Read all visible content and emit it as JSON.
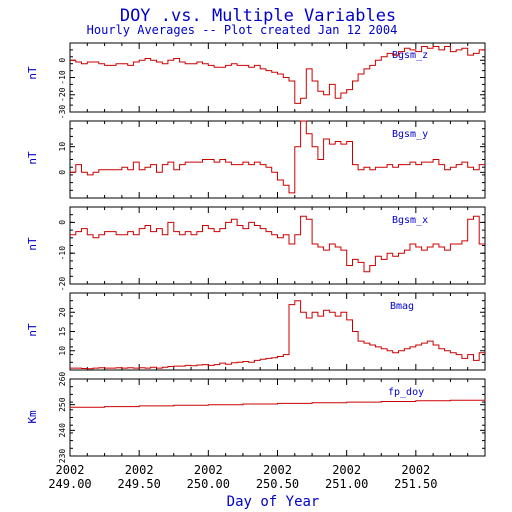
{
  "title": "DOY .vs. Multiple Variables",
  "subtitle": "Hourly Averages -- Plot created Jan 12 2004",
  "xlabel": "Day of Year",
  "x_tick_years": [
    "2002",
    "2002",
    "2002",
    "2002",
    "2002",
    "2002"
  ],
  "x_tick_days": [
    "249.00",
    "249.50",
    "250.00",
    "250.50",
    "251.00",
    "251.50"
  ],
  "colors": {
    "text": "#0000cc",
    "trace": "#cc0000",
    "axis": "#000000"
  },
  "chart_data": [
    {
      "type": "line",
      "name": "Bgsm_z",
      "ylabel": "nT",
      "ylim": [
        -30,
        10
      ],
      "yticks": [
        -30,
        -20,
        -10,
        0
      ],
      "xlim": [
        249.0,
        252.0
      ],
      "step": true,
      "x": [
        249.0,
        249.042,
        249.083,
        249.125,
        249.167,
        249.208,
        249.25,
        249.292,
        249.333,
        249.375,
        249.417,
        249.458,
        249.5,
        249.542,
        249.583,
        249.625,
        249.667,
        249.708,
        249.75,
        249.792,
        249.833,
        249.875,
        249.917,
        249.958,
        250.0,
        250.042,
        250.083,
        250.125,
        250.167,
        250.208,
        250.25,
        250.292,
        250.333,
        250.375,
        250.417,
        250.458,
        250.5,
        250.542,
        250.583,
        250.625,
        250.667,
        250.708,
        250.75,
        250.792,
        250.833,
        250.875,
        250.917,
        250.958,
        251.0,
        251.042,
        251.083,
        251.125,
        251.167,
        251.208,
        251.25,
        251.292,
        251.333,
        251.375,
        251.417,
        251.458,
        251.5,
        251.542,
        251.583,
        251.625,
        251.667,
        251.708,
        251.75,
        251.792,
        251.833,
        251.875,
        251.917,
        251.958
      ],
      "values": [
        0,
        -1,
        -2,
        -1,
        -1,
        -2,
        -3,
        -3,
        -2,
        -2,
        -3,
        -1,
        0,
        1,
        0,
        -1,
        -2,
        0,
        1,
        -1,
        -2,
        -2,
        -1,
        -2,
        -3,
        -4,
        -4,
        -3,
        -2,
        -3,
        -3,
        -4,
        -3,
        -5,
        -6,
        -7,
        -8,
        -10,
        -12,
        -25,
        -22,
        -5,
        -12,
        -18,
        -20,
        -14,
        -22,
        -19,
        -17,
        -12,
        -8,
        -5,
        -3,
        0,
        2,
        4,
        3,
        5,
        7,
        6,
        5,
        8,
        7,
        8,
        6,
        8,
        5,
        6,
        7,
        3,
        4,
        6
      ]
    },
    {
      "type": "line",
      "name": "Bgsm_y",
      "ylabel": "nT",
      "ylim": [
        -10,
        20
      ],
      "yticks": [
        0,
        10
      ],
      "xlim": [
        249.0,
        252.0
      ],
      "step": true,
      "x": [
        249.0,
        249.042,
        249.083,
        249.125,
        249.167,
        249.208,
        249.25,
        249.292,
        249.333,
        249.375,
        249.417,
        249.458,
        249.5,
        249.542,
        249.583,
        249.625,
        249.667,
        249.708,
        249.75,
        249.792,
        249.833,
        249.875,
        249.917,
        249.958,
        250.0,
        250.042,
        250.083,
        250.125,
        250.167,
        250.208,
        250.25,
        250.292,
        250.333,
        250.375,
        250.417,
        250.458,
        250.5,
        250.542,
        250.583,
        250.625,
        250.667,
        250.708,
        250.75,
        250.792,
        250.833,
        250.875,
        250.917,
        250.958,
        251.0,
        251.042,
        251.083,
        251.125,
        251.167,
        251.208,
        251.25,
        251.292,
        251.333,
        251.375,
        251.417,
        251.458,
        251.5,
        251.542,
        251.583,
        251.625,
        251.667,
        251.708,
        251.75,
        251.792,
        251.833,
        251.875,
        251.917,
        251.958
      ],
      "values": [
        0,
        3,
        0,
        -1,
        0,
        1,
        1,
        1,
        1,
        2,
        1,
        4,
        1,
        2,
        3,
        0,
        3,
        4,
        1,
        3,
        4,
        4,
        4,
        5,
        5,
        4,
        5,
        4,
        3,
        3,
        4,
        3,
        4,
        3,
        2,
        0,
        -3,
        -5,
        -8,
        10,
        20,
        15,
        10,
        5,
        13,
        11,
        12,
        11,
        12,
        3,
        1,
        2,
        1,
        2,
        2,
        3,
        2,
        3,
        3,
        4,
        3,
        4,
        4,
        5,
        3,
        1,
        2,
        3,
        4,
        2,
        1,
        3
      ]
    },
    {
      "type": "line",
      "name": "Bgsm_x",
      "ylabel": "nT",
      "ylim": [
        -20,
        5
      ],
      "yticks": [
        -20,
        -10,
        0
      ],
      "xlim": [
        249.0,
        252.0
      ],
      "step": true,
      "x": [
        249.0,
        249.042,
        249.083,
        249.125,
        249.167,
        249.208,
        249.25,
        249.292,
        249.333,
        249.375,
        249.417,
        249.458,
        249.5,
        249.542,
        249.583,
        249.625,
        249.667,
        249.708,
        249.75,
        249.792,
        249.833,
        249.875,
        249.917,
        249.958,
        250.0,
        250.042,
        250.083,
        250.125,
        250.167,
        250.208,
        250.25,
        250.292,
        250.333,
        250.375,
        250.417,
        250.458,
        250.5,
        250.542,
        250.583,
        250.625,
        250.667,
        250.708,
        250.75,
        250.792,
        250.833,
        250.875,
        250.917,
        250.958,
        251.0,
        251.042,
        251.083,
        251.125,
        251.167,
        251.208,
        251.25,
        251.292,
        251.333,
        251.375,
        251.417,
        251.458,
        251.5,
        251.542,
        251.583,
        251.625,
        251.667,
        251.708,
        251.75,
        251.792,
        251.833,
        251.875,
        251.917,
        251.958
      ],
      "values": [
        -4,
        -3,
        -2,
        -4,
        -5,
        -4,
        -3,
        -3,
        -4,
        -4,
        -3,
        -4,
        -2,
        -1,
        -3,
        -2,
        -4,
        0,
        -3,
        -4,
        -3,
        -4,
        -3,
        -1,
        -2,
        -3,
        -2,
        0,
        1,
        -1,
        -2,
        0,
        -1,
        -2,
        -3,
        -4,
        -5,
        -4,
        -7,
        -4,
        2,
        1,
        -7,
        -8,
        -9,
        -7,
        -8,
        -9,
        -14,
        -12,
        -13,
        -16,
        -14,
        -11,
        -12,
        -10,
        -11,
        -10,
        -9,
        -7,
        -8,
        -9,
        -8,
        -7,
        -8,
        -9,
        -7,
        -7,
        -6,
        1,
        2,
        -7
      ]
    },
    {
      "type": "line",
      "name": "Bmag",
      "ylabel": "nT",
      "ylim": [
        5,
        25
      ],
      "yticks": [
        10,
        15,
        20
      ],
      "xlim": [
        249.0,
        252.0
      ],
      "step": true,
      "x": [
        249.0,
        249.042,
        249.083,
        249.125,
        249.167,
        249.208,
        249.25,
        249.292,
        249.333,
        249.375,
        249.417,
        249.458,
        249.5,
        249.542,
        249.583,
        249.625,
        249.667,
        249.708,
        249.75,
        249.792,
        249.833,
        249.875,
        249.917,
        249.958,
        250.0,
        250.042,
        250.083,
        250.125,
        250.167,
        250.208,
        250.25,
        250.292,
        250.333,
        250.375,
        250.417,
        250.458,
        250.5,
        250.542,
        250.583,
        250.625,
        250.667,
        250.708,
        250.75,
        250.792,
        250.833,
        250.875,
        250.917,
        250.958,
        251.0,
        251.042,
        251.083,
        251.125,
        251.167,
        251.208,
        251.25,
        251.292,
        251.333,
        251.375,
        251.417,
        251.458,
        251.5,
        251.542,
        251.583,
        251.625,
        251.667,
        251.708,
        251.75,
        251.792,
        251.833,
        251.875,
        251.917,
        251.958
      ],
      "values": [
        5.5,
        5.5,
        5.4,
        5.3,
        5.5,
        5.6,
        5.5,
        5.5,
        5.6,
        5.5,
        5.6,
        5.5,
        5.6,
        5.5,
        5.7,
        5.5,
        5.7,
        5.9,
        6.0,
        6.0,
        6.2,
        6.1,
        6.3,
        6.4,
        6.2,
        6.4,
        6.8,
        6.5,
        6.9,
        7.0,
        7.2,
        7.0,
        7.5,
        7.8,
        8.0,
        8.2,
        8.5,
        9.0,
        22.0,
        23.0,
        20.0,
        18.5,
        20.0,
        19.0,
        20.5,
        20.0,
        19.0,
        20.0,
        18.0,
        15.0,
        12.5,
        12.0,
        11.5,
        11.0,
        10.5,
        10.0,
        9.5,
        10.0,
        10.5,
        11.0,
        11.5,
        12.0,
        12.5,
        11.5,
        10.5,
        10.0,
        9.5,
        9.0,
        8.0,
        9.0,
        7.5,
        9.5
      ]
    },
    {
      "type": "line",
      "name": "fp_doy",
      "ylabel": "Km",
      "ylim": [
        230,
        260
      ],
      "yticks": [
        230,
        240,
        250,
        260
      ],
      "xlim": [
        249.0,
        252.0
      ],
      "step": true,
      "x": [
        249.0,
        249.25,
        249.5,
        249.75,
        250.0,
        250.25,
        250.5,
        250.75,
        251.0,
        251.25,
        251.5,
        251.75,
        252.0
      ],
      "values": [
        249.0,
        249.25,
        249.5,
        249.75,
        250.0,
        250.25,
        250.5,
        250.75,
        251.0,
        251.25,
        251.5,
        251.75,
        252.0
      ]
    }
  ]
}
